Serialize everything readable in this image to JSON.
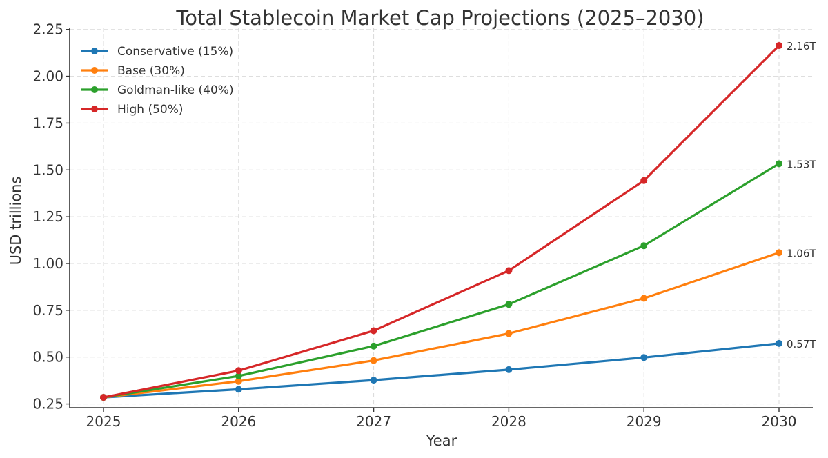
{
  "chart_data": {
    "type": "line",
    "title": "Total Stablecoin Market Cap Projections (2025–2030)",
    "xlabel": "Year",
    "ylabel": "USD trillions",
    "x": [
      "2025",
      "2026",
      "2027",
      "2028",
      "2029",
      "2030"
    ],
    "ylim": [
      0.23,
      2.26
    ],
    "yticks": [
      "0.25",
      "0.50",
      "0.75",
      "1.00",
      "1.25",
      "1.50",
      "1.75",
      "2.00",
      "2.25"
    ],
    "grid": true,
    "legend_position": "top-left",
    "series": [
      {
        "name": "Conservative (15%)",
        "color": "#1f77b4",
        "values": [
          0.285,
          0.328,
          0.377,
          0.433,
          0.498,
          0.573
        ],
        "end_label": "0.57T"
      },
      {
        "name": "Base (30%)",
        "color": "#ff7f0e",
        "values": [
          0.285,
          0.371,
          0.482,
          0.626,
          0.814,
          1.058
        ],
        "end_label": "1.06T"
      },
      {
        "name": "Goldman-like (40%)",
        "color": "#2ca02c",
        "values": [
          0.285,
          0.399,
          0.559,
          0.782,
          1.095,
          1.533
        ],
        "end_label": "1.53T"
      },
      {
        "name": "High (50%)",
        "color": "#d62728",
        "values": [
          0.285,
          0.428,
          0.641,
          0.962,
          1.443,
          2.164
        ],
        "end_label": "2.16T"
      }
    ]
  }
}
